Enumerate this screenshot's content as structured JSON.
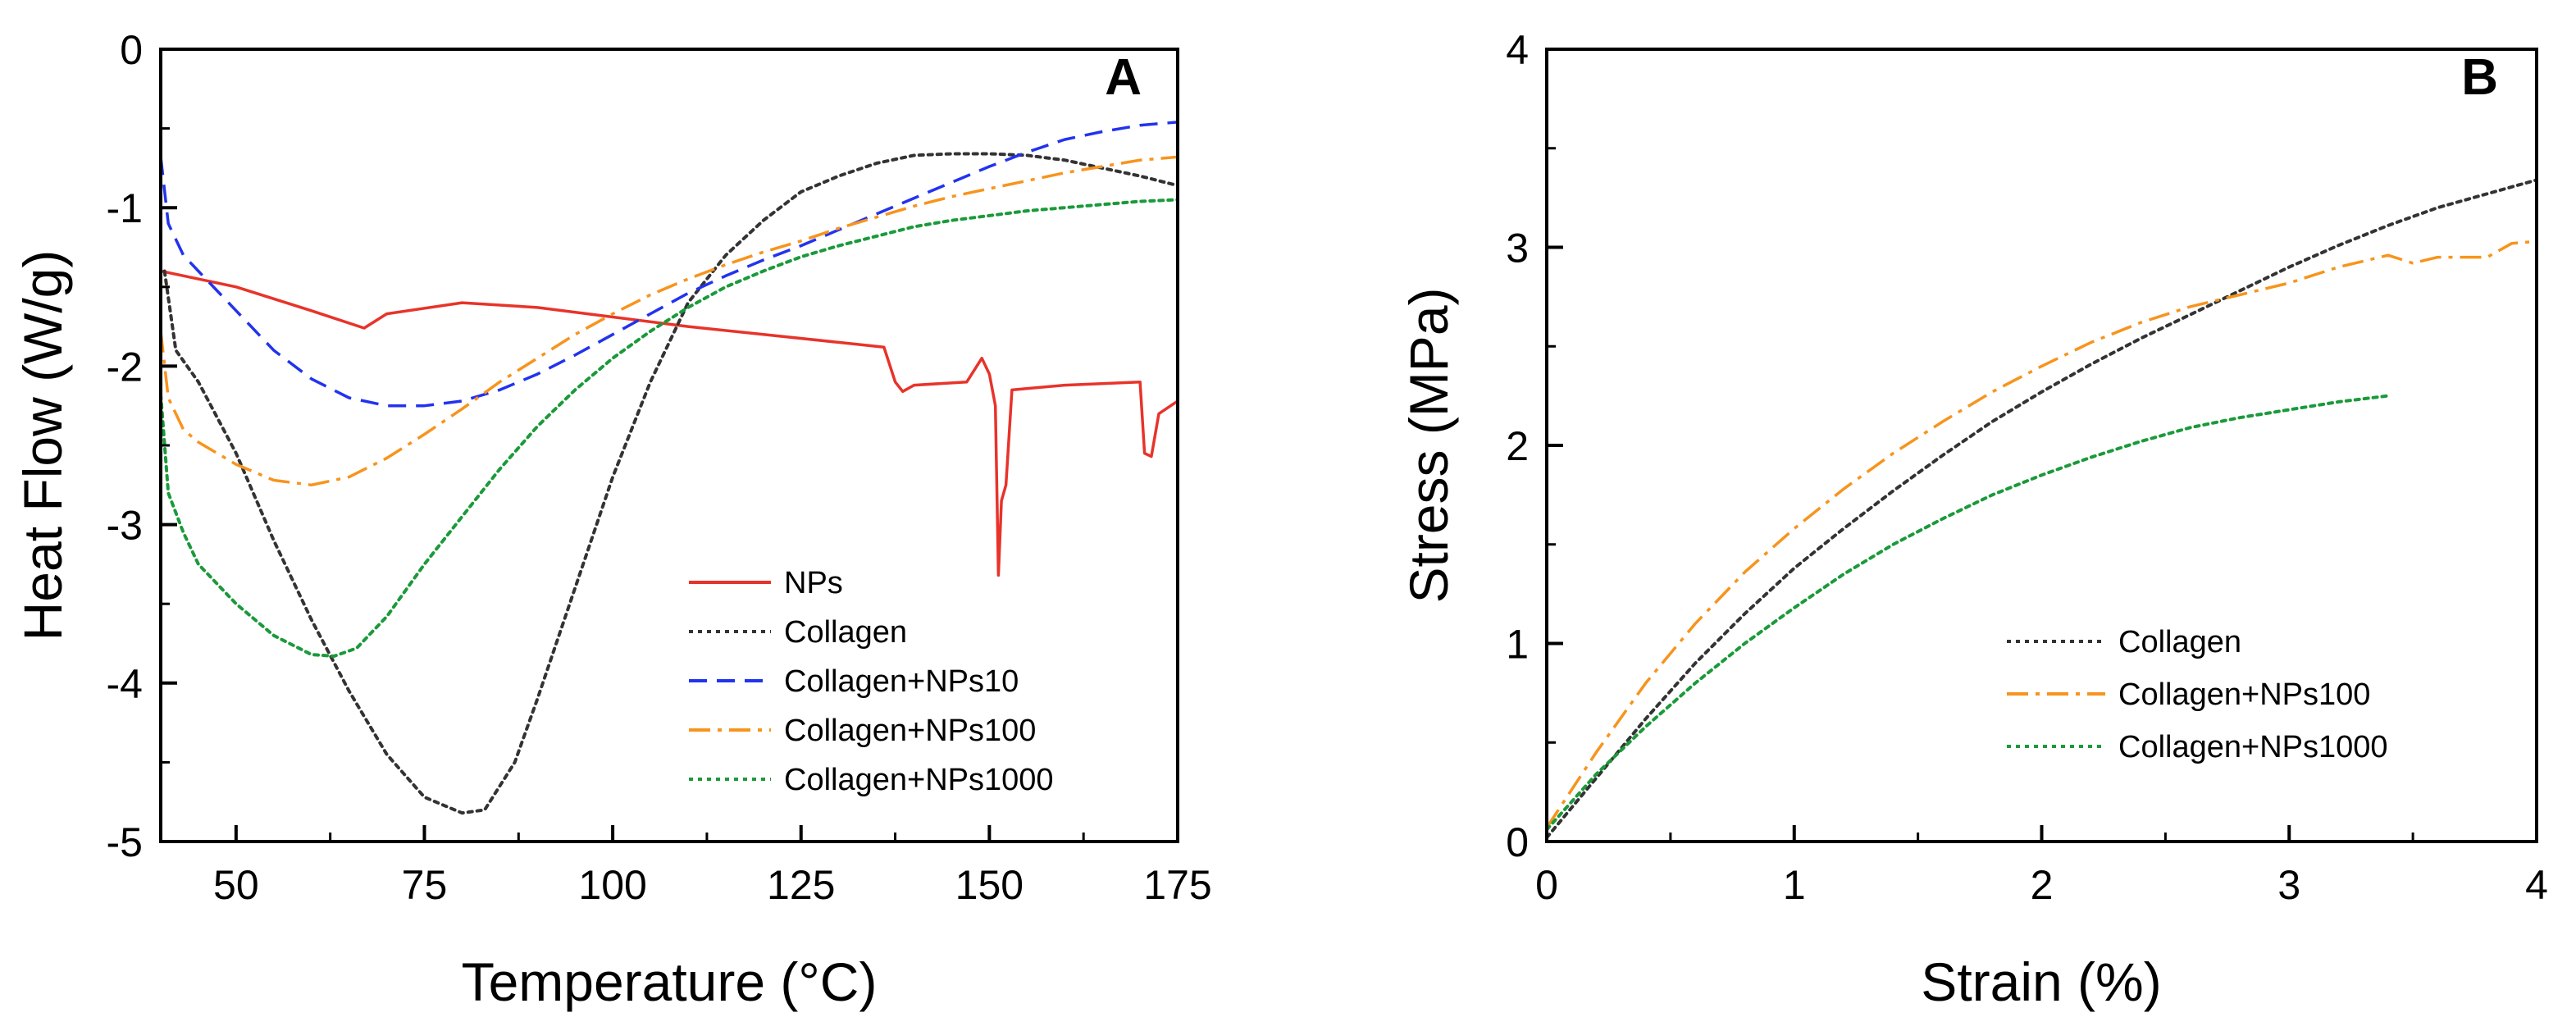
{
  "chart_data": [
    {
      "type": "line",
      "panel_label": "A",
      "xlabel": "Temperature (°C)",
      "ylabel": "Heat Flow (W/g)",
      "xlim": [
        40,
        175
      ],
      "ylim": [
        -5,
        0
      ],
      "xticks": [
        50,
        75,
        100,
        125,
        150,
        175
      ],
      "yticks": [
        0,
        -1,
        -2,
        -3,
        -4,
        -5
      ],
      "legend_position": "lower-right",
      "series": [
        {
          "name": "NPs",
          "color": "#e8332a",
          "dash": "solid",
          "points": [
            [
              40,
              -1.4
            ],
            [
              50,
              -1.5
            ],
            [
              60,
              -1.65
            ],
            [
              67,
              -1.76
            ],
            [
              70,
              -1.67
            ],
            [
              80,
              -1.6
            ],
            [
              90,
              -1.63
            ],
            [
              100,
              -1.69
            ],
            [
              110,
              -1.75
            ],
            [
              120,
              -1.8
            ],
            [
              130,
              -1.85
            ],
            [
              136,
              -1.88
            ],
            [
              137.5,
              -2.1
            ],
            [
              138.5,
              -2.16
            ],
            [
              140,
              -2.12
            ],
            [
              147,
              -2.1
            ],
            [
              149,
              -1.95
            ],
            [
              150,
              -2.05
            ],
            [
              150.8,
              -2.25
            ],
            [
              151.2,
              -3.32
            ],
            [
              151.6,
              -2.85
            ],
            [
              152.2,
              -2.75
            ],
            [
              153,
              -2.15
            ],
            [
              160,
              -2.12
            ],
            [
              170,
              -2.1
            ],
            [
              170.6,
              -2.55
            ],
            [
              171.5,
              -2.57
            ],
            [
              172.5,
              -2.3
            ],
            [
              175,
              -2.22
            ]
          ]
        },
        {
          "name": "Collagen",
          "color": "#333333",
          "dash": "dotted",
          "points": [
            [
              40.5,
              -1.4
            ],
            [
              42,
              -1.9
            ],
            [
              45,
              -2.1
            ],
            [
              50,
              -2.55
            ],
            [
              55,
              -3.1
            ],
            [
              60,
              -3.6
            ],
            [
              65,
              -4.05
            ],
            [
              70,
              -4.45
            ],
            [
              75,
              -4.72
            ],
            [
              80,
              -4.82
            ],
            [
              83,
              -4.8
            ],
            [
              87,
              -4.5
            ],
            [
              90,
              -4.1
            ],
            [
              95,
              -3.4
            ],
            [
              100,
              -2.7
            ],
            [
              105,
              -2.1
            ],
            [
              110,
              -1.6
            ],
            [
              115,
              -1.3
            ],
            [
              120,
              -1.08
            ],
            [
              125,
              -0.9
            ],
            [
              130,
              -0.8
            ],
            [
              135,
              -0.72
            ],
            [
              140,
              -0.67
            ],
            [
              145,
              -0.66
            ],
            [
              150,
              -0.66
            ],
            [
              155,
              -0.67
            ],
            [
              160,
              -0.7
            ],
            [
              165,
              -0.75
            ],
            [
              170,
              -0.8
            ],
            [
              175,
              -0.86
            ]
          ]
        },
        {
          "name": "Collagen+NPs10",
          "color": "#2233ee",
          "dash": "dashed",
          "points": [
            [
              40,
              -0.68
            ],
            [
              41,
              -1.1
            ],
            [
              43,
              -1.3
            ],
            [
              45,
              -1.4
            ],
            [
              50,
              -1.65
            ],
            [
              55,
              -1.9
            ],
            [
              60,
              -2.08
            ],
            [
              65,
              -2.2
            ],
            [
              70,
              -2.25
            ],
            [
              75,
              -2.25
            ],
            [
              80,
              -2.22
            ],
            [
              85,
              -2.15
            ],
            [
              90,
              -2.05
            ],
            [
              95,
              -1.93
            ],
            [
              100,
              -1.8
            ],
            [
              105,
              -1.67
            ],
            [
              110,
              -1.54
            ],
            [
              115,
              -1.43
            ],
            [
              120,
              -1.33
            ],
            [
              125,
              -1.24
            ],
            [
              130,
              -1.14
            ],
            [
              135,
              -1.04
            ],
            [
              140,
              -0.94
            ],
            [
              145,
              -0.84
            ],
            [
              150,
              -0.74
            ],
            [
              155,
              -0.65
            ],
            [
              160,
              -0.57
            ],
            [
              165,
              -0.52
            ],
            [
              170,
              -0.48
            ],
            [
              175,
              -0.46
            ]
          ]
        },
        {
          "name": "Collagen+NPs100",
          "color": "#f7941d",
          "dash": "dashdot",
          "points": [
            [
              40,
              -1.78
            ],
            [
              41,
              -2.2
            ],
            [
              43,
              -2.4
            ],
            [
              45,
              -2.48
            ],
            [
              50,
              -2.62
            ],
            [
              55,
              -2.72
            ],
            [
              60,
              -2.75
            ],
            [
              65,
              -2.7
            ],
            [
              70,
              -2.58
            ],
            [
              75,
              -2.43
            ],
            [
              80,
              -2.27
            ],
            [
              85,
              -2.1
            ],
            [
              90,
              -1.95
            ],
            [
              95,
              -1.8
            ],
            [
              100,
              -1.67
            ],
            [
              105,
              -1.55
            ],
            [
              110,
              -1.45
            ],
            [
              115,
              -1.36
            ],
            [
              120,
              -1.28
            ],
            [
              125,
              -1.21
            ],
            [
              130,
              -1.13
            ],
            [
              135,
              -1.06
            ],
            [
              140,
              -0.99
            ],
            [
              145,
              -0.93
            ],
            [
              150,
              -0.88
            ],
            [
              155,
              -0.83
            ],
            [
              160,
              -0.78
            ],
            [
              165,
              -0.74
            ],
            [
              170,
              -0.7
            ],
            [
              175,
              -0.68
            ]
          ]
        },
        {
          "name": "Collagen+NPs1000",
          "color": "#1a9a3a",
          "dash": "dotted",
          "points": [
            [
              40,
              -2.18
            ],
            [
              41,
              -2.8
            ],
            [
              43,
              -3.05
            ],
            [
              45,
              -3.25
            ],
            [
              50,
              -3.5
            ],
            [
              55,
              -3.7
            ],
            [
              60,
              -3.82
            ],
            [
              63,
              -3.83
            ],
            [
              66,
              -3.78
            ],
            [
              70,
              -3.58
            ],
            [
              75,
              -3.25
            ],
            [
              80,
              -2.95
            ],
            [
              85,
              -2.65
            ],
            [
              90,
              -2.38
            ],
            [
              95,
              -2.15
            ],
            [
              100,
              -1.95
            ],
            [
              105,
              -1.78
            ],
            [
              110,
              -1.63
            ],
            [
              115,
              -1.5
            ],
            [
              120,
              -1.4
            ],
            [
              125,
              -1.31
            ],
            [
              130,
              -1.24
            ],
            [
              135,
              -1.18
            ],
            [
              140,
              -1.12
            ],
            [
              145,
              -1.08
            ],
            [
              150,
              -1.05
            ],
            [
              155,
              -1.02
            ],
            [
              160,
              -1.0
            ],
            [
              165,
              -0.98
            ],
            [
              170,
              -0.96
            ],
            [
              175,
              -0.95
            ]
          ]
        }
      ]
    },
    {
      "type": "line",
      "panel_label": "B",
      "xlabel": "Strain (%)",
      "ylabel": "Stress (MPa)",
      "xlim": [
        0,
        4
      ],
      "ylim": [
        0,
        4
      ],
      "xticks": [
        0,
        1,
        2,
        3,
        4
      ],
      "yticks": [
        0,
        1,
        2,
        3,
        4
      ],
      "legend_position": "lower-right",
      "series": [
        {
          "name": "Collagen",
          "color": "#333333",
          "dash": "dotted",
          "points": [
            [
              0,
              0.02
            ],
            [
              0.2,
              0.32
            ],
            [
              0.4,
              0.62
            ],
            [
              0.6,
              0.9
            ],
            [
              0.8,
              1.15
            ],
            [
              1.0,
              1.38
            ],
            [
              1.2,
              1.58
            ],
            [
              1.4,
              1.77
            ],
            [
              1.6,
              1.95
            ],
            [
              1.8,
              2.12
            ],
            [
              2.0,
              2.27
            ],
            [
              2.2,
              2.41
            ],
            [
              2.4,
              2.54
            ],
            [
              2.6,
              2.66
            ],
            [
              2.8,
              2.78
            ],
            [
              3.0,
              2.9
            ],
            [
              3.2,
              3.01
            ],
            [
              3.4,
              3.11
            ],
            [
              3.6,
              3.2
            ],
            [
              3.8,
              3.27
            ],
            [
              4.0,
              3.34
            ]
          ]
        },
        {
          "name": "Collagen+NPs100",
          "color": "#f7941d",
          "dash": "dashdot",
          "points": [
            [
              0,
              0.07
            ],
            [
              0.2,
              0.45
            ],
            [
              0.4,
              0.8
            ],
            [
              0.6,
              1.1
            ],
            [
              0.8,
              1.36
            ],
            [
              1.0,
              1.58
            ],
            [
              1.2,
              1.78
            ],
            [
              1.4,
              1.96
            ],
            [
              1.6,
              2.12
            ],
            [
              1.8,
              2.27
            ],
            [
              2.0,
              2.4
            ],
            [
              2.2,
              2.52
            ],
            [
              2.4,
              2.62
            ],
            [
              2.6,
              2.7
            ],
            [
              2.8,
              2.76
            ],
            [
              3.0,
              2.82
            ],
            [
              3.2,
              2.9
            ],
            [
              3.4,
              2.96
            ],
            [
              3.5,
              2.92
            ],
            [
              3.6,
              2.95
            ],
            [
              3.8,
              2.95
            ],
            [
              3.9,
              3.02
            ],
            [
              4.0,
              3.03
            ]
          ]
        },
        {
          "name": "Collagen+NPs1000",
          "color": "#1a9a3a",
          "dash": "dotted",
          "points": [
            [
              0,
              0.06
            ],
            [
              0.2,
              0.34
            ],
            [
              0.4,
              0.58
            ],
            [
              0.6,
              0.8
            ],
            [
              0.8,
              1.0
            ],
            [
              1.0,
              1.18
            ],
            [
              1.2,
              1.35
            ],
            [
              1.4,
              1.5
            ],
            [
              1.6,
              1.63
            ],
            [
              1.8,
              1.75
            ],
            [
              2.0,
              1.85
            ],
            [
              2.2,
              1.94
            ],
            [
              2.4,
              2.02
            ],
            [
              2.6,
              2.09
            ],
            [
              2.8,
              2.14
            ],
            [
              3.0,
              2.18
            ],
            [
              3.2,
              2.22
            ],
            [
              3.4,
              2.25
            ]
          ]
        }
      ]
    }
  ]
}
